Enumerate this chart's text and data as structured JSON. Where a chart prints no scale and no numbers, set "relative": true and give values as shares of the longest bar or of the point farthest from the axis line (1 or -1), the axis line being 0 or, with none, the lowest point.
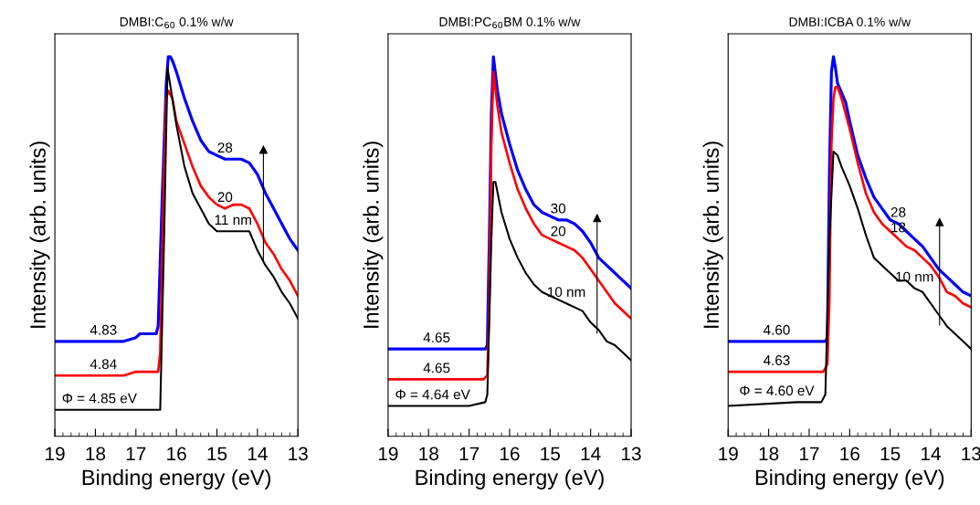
{
  "chart_data": [
    {
      "type": "line",
      "title": "DMBI:C$_{60}$ 0.1% w/w",
      "xlabel": "Binding energy (eV)",
      "ylabel": "Intensity (arb. units)",
      "relative": true,
      "xlim": [
        19,
        13
      ],
      "xticks": [
        19,
        18,
        17,
        16,
        15,
        14,
        13
      ],
      "tick_labels": "x",
      "grid": false,
      "legend": false,
      "series": [
        {
          "color": "#0000ff",
          "x": [
            19,
            17.3,
            17.0,
            16.9,
            16.8,
            16.7,
            16.5,
            16.45,
            16.35,
            16.25,
            16.2,
            16.15,
            16.1,
            16.0,
            15.8,
            15.6,
            15.4,
            15.2,
            15.0,
            14.8,
            14.6,
            14.4,
            14.2,
            14.0,
            13.8,
            13.6,
            13.4,
            13.2,
            13.0
          ],
          "values": [
            0.25,
            0.25,
            0.26,
            0.27,
            0.27,
            0.27,
            0.27,
            0.29,
            0.63,
            0.93,
            1.0,
            1.0,
            0.99,
            0.96,
            0.89,
            0.83,
            0.78,
            0.75,
            0.74,
            0.73,
            0.73,
            0.73,
            0.72,
            0.69,
            0.64,
            0.6,
            0.56,
            0.52,
            0.49
          ]
        },
        {
          "color": "#ff0000",
          "x": [
            19,
            17.3,
            17.0,
            16.8,
            16.6,
            16.45,
            16.4,
            16.3,
            16.25,
            16.2,
            16.1,
            16.0,
            15.8,
            15.6,
            15.4,
            15.2,
            15.0,
            14.8,
            14.6,
            14.4,
            14.2,
            14.0,
            13.8,
            13.6,
            13.4,
            13.2,
            13.0
          ],
          "values": [
            0.16,
            0.16,
            0.17,
            0.17,
            0.17,
            0.17,
            0.22,
            0.71,
            0.89,
            0.91,
            0.89,
            0.83,
            0.77,
            0.71,
            0.66,
            0.63,
            0.61,
            0.6,
            0.61,
            0.61,
            0.6,
            0.56,
            0.51,
            0.48,
            0.44,
            0.41,
            0.37
          ]
        },
        {
          "color": "#000000",
          "x": [
            19,
            16.4,
            16.3,
            16.22,
            16.1,
            16.0,
            15.8,
            15.6,
            15.4,
            15.2,
            15.0,
            14.8,
            14.6,
            14.4,
            14.2,
            14.0,
            13.8,
            13.6,
            13.4,
            13.2,
            13.0
          ],
          "values": [
            0.07,
            0.07,
            0.54,
            0.97,
            0.89,
            0.82,
            0.71,
            0.64,
            0.6,
            0.56,
            0.54,
            0.54,
            0.54,
            0.54,
            0.54,
            0.49,
            0.45,
            0.42,
            0.38,
            0.35,
            0.31
          ]
        }
      ],
      "annotations": [
        {
          "text": "28",
          "x": 14.8,
          "y": 0.73
        },
        {
          "text": "20",
          "x": 14.8,
          "y": 0.6
        },
        {
          "text": "11 nm",
          "x": 14.6,
          "y": 0.54
        },
        {
          "text": "4.83",
          "x": 17.8,
          "y": 0.25
        },
        {
          "text": "4.84",
          "x": 17.8,
          "y": 0.16
        },
        {
          "text": "Φ = 4.85 eV",
          "x": 17.9,
          "y": 0.07
        }
      ]
    },
    {
      "type": "line",
      "title": "DMBI:PC$_{60}$BM 0.1% w/w",
      "xlabel": "Binding energy (eV)",
      "ylabel": "Intensity (arb. units)",
      "relative": true,
      "xlim": [
        19,
        13
      ],
      "xticks": [
        19,
        18,
        17,
        16,
        15,
        14,
        13
      ],
      "tick_labels": "x",
      "grid": false,
      "legend": false,
      "series": [
        {
          "color": "#0000ff",
          "x": [
            19,
            16.6,
            16.55,
            16.5,
            16.45,
            16.4,
            16.3,
            16.2,
            16.0,
            15.8,
            15.6,
            15.4,
            15.2,
            15.0,
            14.8,
            14.6,
            14.4,
            14.2,
            14.0,
            13.8,
            13.6,
            13.4,
            13.2,
            13.0
          ],
          "values": [
            0.23,
            0.23,
            0.24,
            0.52,
            0.85,
            1.0,
            0.91,
            0.85,
            0.77,
            0.7,
            0.65,
            0.61,
            0.59,
            0.58,
            0.57,
            0.57,
            0.56,
            0.54,
            0.51,
            0.47,
            0.45,
            0.43,
            0.41,
            0.39
          ]
        },
        {
          "color": "#ff0000",
          "x": [
            19,
            16.65,
            16.55,
            16.5,
            16.45,
            16.4,
            16.3,
            16.2,
            16.0,
            15.8,
            15.6,
            15.4,
            15.2,
            15.0,
            14.8,
            14.6,
            14.4,
            14.2,
            14.0,
            13.8,
            13.6,
            13.4,
            13.2,
            13.0
          ],
          "values": [
            0.15,
            0.15,
            0.16,
            0.36,
            0.77,
            0.96,
            0.87,
            0.8,
            0.72,
            0.65,
            0.6,
            0.56,
            0.53,
            0.52,
            0.51,
            0.5,
            0.49,
            0.47,
            0.44,
            0.41,
            0.38,
            0.35,
            0.33,
            0.31
          ]
        },
        {
          "color": "#000000",
          "x": [
            19,
            17.2,
            17.0,
            16.6,
            16.55,
            16.45,
            16.4,
            16.35,
            16.2,
            16.0,
            15.8,
            15.6,
            15.4,
            15.2,
            15.0,
            14.8,
            14.6,
            14.4,
            14.2,
            14.0,
            13.8,
            13.6,
            13.4,
            13.2,
            13.0
          ],
          "values": [
            0.08,
            0.08,
            0.08,
            0.09,
            0.11,
            0.52,
            0.67,
            0.67,
            0.59,
            0.52,
            0.47,
            0.43,
            0.4,
            0.38,
            0.37,
            0.36,
            0.35,
            0.34,
            0.33,
            0.3,
            0.28,
            0.25,
            0.24,
            0.22,
            0.2
          ]
        }
      ],
      "annotations": [
        {
          "text": "30",
          "x": 14.8,
          "y": 0.57
        },
        {
          "text": "20",
          "x": 14.8,
          "y": 0.51
        },
        {
          "text": "10 nm",
          "x": 14.6,
          "y": 0.35
        },
        {
          "text": "4.65",
          "x": 17.8,
          "y": 0.23
        },
        {
          "text": "4.65",
          "x": 17.8,
          "y": 0.15
        },
        {
          "text": "Φ = 4.64 eV",
          "x": 17.9,
          "y": 0.08
        }
      ]
    },
    {
      "type": "line",
      "title": "DMBI:ICBA 0.1% w/w",
      "xlabel": "Binding energy (eV)",
      "ylabel": "Intensity (arb. units)",
      "relative": true,
      "xlim": [
        19,
        13
      ],
      "xticks": [
        19,
        18,
        17,
        16,
        15,
        14,
        13
      ],
      "tick_labels": "x",
      "grid": false,
      "legend": false,
      "series": [
        {
          "color": "#0000ff",
          "x": [
            19,
            16.6,
            16.55,
            16.5,
            16.45,
            16.4,
            16.35,
            16.3,
            16.1,
            16.0,
            15.8,
            15.6,
            15.4,
            15.2,
            15.0,
            14.8,
            14.6,
            14.4,
            14.2,
            14.0,
            13.8,
            13.6,
            13.4,
            13.2,
            13.0
          ],
          "values": [
            0.25,
            0.25,
            0.26,
            0.69,
            0.96,
            1.0,
            0.97,
            0.93,
            0.88,
            0.83,
            0.74,
            0.68,
            0.63,
            0.6,
            0.57,
            0.56,
            0.54,
            0.52,
            0.5,
            0.47,
            0.44,
            0.42,
            0.4,
            0.38,
            0.37
          ]
        },
        {
          "color": "#ff0000",
          "x": [
            19,
            16.65,
            16.55,
            16.5,
            16.45,
            16.4,
            16.35,
            16.3,
            16.2,
            16.0,
            15.8,
            15.6,
            15.4,
            15.2,
            15.0,
            14.8,
            14.6,
            14.4,
            14.2,
            14.0,
            13.8,
            13.6,
            13.4,
            13.2,
            13.0
          ],
          "values": [
            0.17,
            0.17,
            0.19,
            0.36,
            0.77,
            0.89,
            0.92,
            0.92,
            0.89,
            0.81,
            0.72,
            0.64,
            0.59,
            0.56,
            0.54,
            0.52,
            0.5,
            0.49,
            0.47,
            0.45,
            0.42,
            0.38,
            0.37,
            0.35,
            0.34
          ]
        },
        {
          "color": "#000000",
          "x": [
            19,
            17.3,
            17.0,
            16.7,
            16.6,
            16.5,
            16.4,
            16.3,
            16.2,
            16.0,
            15.8,
            15.6,
            15.4,
            15.2,
            15.0,
            14.8,
            14.6,
            14.4,
            14.2,
            14.0,
            13.8,
            13.6,
            13.4,
            13.2,
            13.0
          ],
          "values": [
            0.08,
            0.09,
            0.09,
            0.09,
            0.11,
            0.52,
            0.75,
            0.74,
            0.71,
            0.66,
            0.6,
            0.53,
            0.47,
            0.45,
            0.43,
            0.41,
            0.41,
            0.39,
            0.38,
            0.35,
            0.32,
            0.29,
            0.27,
            0.25,
            0.23
          ]
        }
      ],
      "annotations": [
        {
          "text": "28",
          "x": 14.8,
          "y": 0.56
        },
        {
          "text": "18",
          "x": 14.8,
          "y": 0.52
        },
        {
          "text": "10 nm",
          "x": 14.4,
          "y": 0.39
        },
        {
          "text": "4.60",
          "x": 17.8,
          "y": 0.25
        },
        {
          "text": "4.63",
          "x": 17.8,
          "y": 0.17
        },
        {
          "text": "Φ = 4.60 eV",
          "x": 17.8,
          "y": 0.09
        }
      ]
    }
  ]
}
